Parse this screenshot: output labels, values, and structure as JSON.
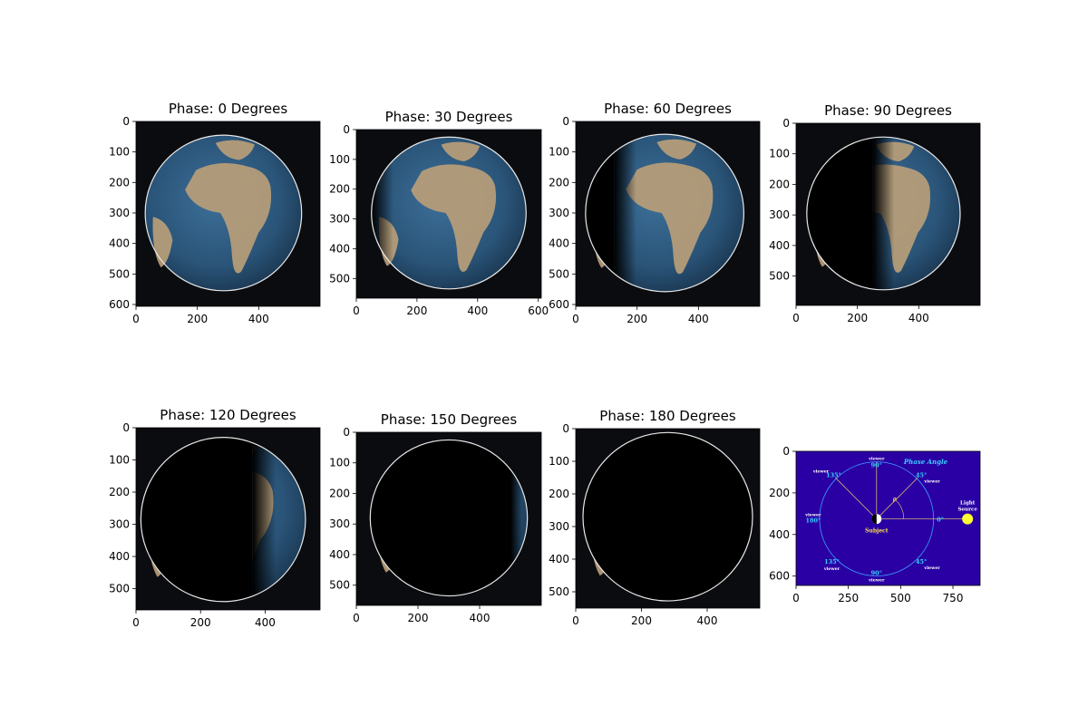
{
  "chart_data": [
    {
      "type": "image",
      "title": "Phase: 0 Degrees",
      "phase_deg": 0,
      "xticks": [
        "0",
        "200",
        "400"
      ],
      "yticks": [
        "0",
        "100",
        "200",
        "300",
        "400",
        "500",
        "600"
      ],
      "width": 600,
      "height": 606,
      "lit_fraction": 1.0
    },
    {
      "type": "image",
      "title": "Phase: 30 Degrees",
      "phase_deg": 30,
      "xticks": [
        "0",
        "200",
        "400",
        "600"
      ],
      "yticks": [
        "0",
        "100",
        "200",
        "300",
        "400",
        "500"
      ],
      "width": 610,
      "height": 566,
      "lit_fraction": 0.93
    },
    {
      "type": "image",
      "title": "Phase: 60 Degrees",
      "phase_deg": 60,
      "xticks": [
        "0",
        "200",
        "400"
      ],
      "yticks": [
        "0",
        "100",
        "200",
        "300",
        "400",
        "500",
        "600"
      ],
      "width": 600,
      "height": 606,
      "lit_fraction": 0.75
    },
    {
      "type": "image",
      "title": "Phase: 90 Degrees",
      "phase_deg": 90,
      "xticks": [
        "0",
        "200",
        "400"
      ],
      "yticks": [
        "0",
        "100",
        "200",
        "300",
        "400",
        "500"
      ],
      "width": 600,
      "height": 596,
      "lit_fraction": 0.5
    },
    {
      "type": "image",
      "title": "Phase: 120 Degrees",
      "phase_deg": 120,
      "xticks": [
        "0",
        "200",
        "400"
      ],
      "yticks": [
        "0",
        "100",
        "200",
        "300",
        "400",
        "500"
      ],
      "width": 570,
      "height": 566,
      "lit_fraction": 0.25
    },
    {
      "type": "image",
      "title": "Phase: 150 Degrees",
      "phase_deg": 150,
      "xticks": [
        "0",
        "200",
        "400"
      ],
      "yticks": [
        "0",
        "100",
        "200",
        "300",
        "400",
        "500"
      ],
      "width": 600,
      "height": 566,
      "lit_fraction": 0.07
    },
    {
      "type": "image",
      "title": "Phase: 180 Degrees",
      "phase_deg": 180,
      "xticks": [
        "0",
        "200",
        "400"
      ],
      "yticks": [
        "0",
        "100",
        "200",
        "300",
        "400",
        "500"
      ],
      "width": 560,
      "height": 550,
      "lit_fraction": 0.0
    },
    {
      "type": "image",
      "title": "",
      "phase_deg": null,
      "xticks": [
        "0",
        "250",
        "500",
        "750"
      ],
      "yticks": [
        "0",
        "200",
        "400",
        "600"
      ],
      "width": 880,
      "height": 645,
      "diagram": {
        "heading": "Phase Angle",
        "subject_label": "Subject",
        "light_label_1": "Light",
        "light_label_2": "Source",
        "rho": "ρ",
        "viewer": "viewer",
        "angles": [
          "90°",
          "45°",
          "135°",
          "180°",
          "0°",
          "135°",
          "90°",
          "45°"
        ]
      }
    }
  ],
  "colors": {
    "space": "#0b0c10",
    "ocean": "#2e5a80",
    "land": "#b99e78",
    "rim": "#e8e8e8",
    "diagram_bg": "#2a00a5",
    "diagram_circle": "#3fa0ff",
    "sun": "#ffff33",
    "angle_text": "#38d0ff",
    "viewer_text": "#ffffff"
  }
}
